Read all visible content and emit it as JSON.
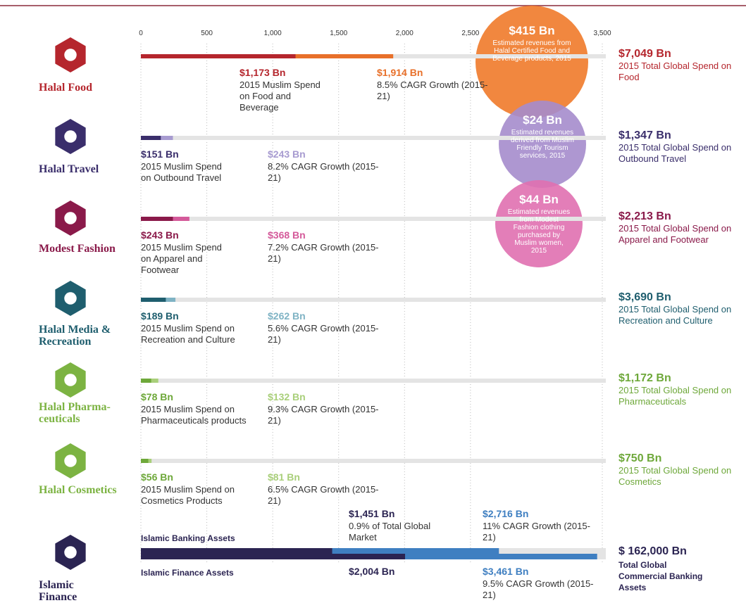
{
  "chart_data": {
    "type": "bar",
    "xlim": [
      0,
      3500
    ],
    "xticks": [
      0,
      500,
      {
        "value": 1000,
        "label": "1,000"
      },
      {
        "value": 1500,
        "label": "1,500"
      },
      {
        "value": 2000,
        "label": "2,000"
      },
      {
        "value": 2500,
        "label": "2,500"
      },
      {
        "value": 3500,
        "label": "3,500"
      }
    ],
    "sectors": [
      {
        "name": "Halal Food",
        "colors": [
          "#b5262d",
          "#e8702a"
        ],
        "values": [
          1173,
          1914
        ],
        "value_labels": [
          "$1,173 Bn",
          "$1,914 Bn"
        ],
        "notes": [
          "2015 Muslim Spend on Food and Beverage",
          "8.5% CAGR Growth (2015-21)"
        ],
        "total_label": "$7,049 Bn",
        "total_note": "2015 Total Global Spend on Food"
      },
      {
        "name": "Halal Travel",
        "colors": [
          "#3a2e6b",
          "#a79bd0"
        ],
        "values": [
          151,
          243
        ],
        "value_labels": [
          "$151 Bn",
          "$243 Bn"
        ],
        "notes": [
          "2015 Muslim Spend on Outbound Travel",
          "8.2% CAGR Growth (2015-21)"
        ],
        "total_label": "$1,347 Bn",
        "total_note": "2015 Total Global Spend on Outbound Travel"
      },
      {
        "name": "Modest Fashion",
        "colors": [
          "#8a1a4a",
          "#d45a9a"
        ],
        "values": [
          243,
          368
        ],
        "value_labels": [
          "$243 Bn",
          "$368 Bn"
        ],
        "notes": [
          "2015 Muslim Spend on Apparel and Footwear",
          "7.2% CAGR Growth (2015-21)"
        ],
        "total_label": "$2,213 Bn",
        "total_note": "2015 Total Global Spend on Apparel and Footwear"
      },
      {
        "name": "Halal Media & Recreation",
        "colors": [
          "#1f5e6e",
          "#7fb3c4"
        ],
        "values": [
          189,
          262
        ],
        "value_labels": [
          "$189 Bn",
          "$262 Bn"
        ],
        "notes": [
          "2015 Muslim Spend on Recreation and Culture",
          "5.6% CAGR Growth (2015-21)"
        ],
        "total_label": "$3,690 Bn",
        "total_note": "2015 Total Global Spend on Recreation and Culture"
      },
      {
        "name": "Halal Pharma-ceuticals",
        "colors": [
          "#6ea83a",
          "#a9cf7a"
        ],
        "values": [
          78,
          132
        ],
        "value_labels": [
          "$78 Bn",
          "$132 Bn"
        ],
        "notes": [
          "2015 Muslim Spend on Pharmaceuticals products",
          "9.3% CAGR Growth (2015-21)"
        ],
        "total_label": "$1,172 Bn",
        "total_note": "2015 Total Global Spend on Pharmaceuticals"
      },
      {
        "name": "Halal Cosmetics",
        "colors": [
          "#6ea83a",
          "#a9cf7a"
        ],
        "values": [
          56,
          81
        ],
        "value_labels": [
          "$56 Bn",
          "$81 Bn"
        ],
        "notes": [
          "2015 Muslim Spend on Cosmetics Products",
          "6.5% CAGR Growth (2015-21)"
        ],
        "total_label": "$750 Bn",
        "total_note": "2015 Total Global Spend on Cosmetics"
      }
    ],
    "bubbles": [
      {
        "label": "$415 Bn",
        "note": "Estimated revenues from Halal Certified Food and Beverage products, 2015",
        "color": "#f07a2a"
      },
      {
        "label": "$24 Bn",
        "note": "Estimated revenues derived from Muslim Friendly Tourism services, 2015",
        "color": "#a58ccc"
      },
      {
        "label": "$44 Bn",
        "note": "Estimated revenues from Modest Fashion clothing purchased by Muslim women, 2015",
        "color": "#e070b0"
      }
    ],
    "finance": {
      "name": "Islamic Finance",
      "colors": [
        "#2b2452",
        "#3f7fc1"
      ],
      "rows": [
        {
          "name": "Islamic Banking Assets",
          "values": [
            1451,
            2716
          ],
          "value_labels": [
            "$1,451 Bn",
            "$2,716 Bn"
          ],
          "notes": [
            "0.9% of Total Global Market",
            "11% CAGR Growth (2015-21)"
          ]
        },
        {
          "name": "Islamic Finance Assets",
          "values": [
            2004,
            3461
          ],
          "value_labels": [
            "$2,004 Bn",
            "$3,461 Bn"
          ],
          "notes": [
            "9.5% CAGR Growth (2015-21)"
          ]
        }
      ],
      "total_label": "$ 162,000 Bn",
      "total_note": "Total Global Commercial Banking Assets"
    }
  }
}
